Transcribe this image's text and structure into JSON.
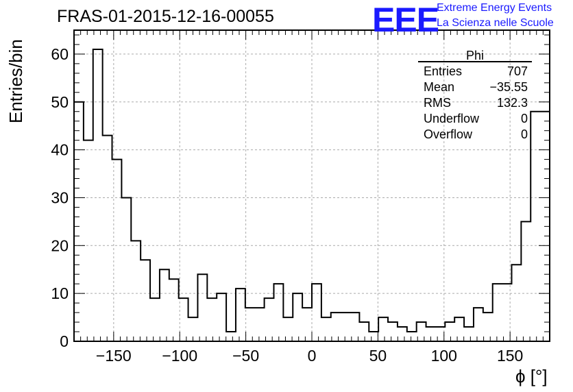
{
  "header": {
    "title": "FRAS-01-2015-12-16-00055"
  },
  "logo": {
    "text": "EEE",
    "line1": "Extreme Energy Events",
    "line2": "La Scienza nelle Scuole"
  },
  "stats": {
    "title": "Phi",
    "rows": [
      {
        "label": "Entries",
        "value": "707"
      },
      {
        "label": "Mean",
        "value": "−35.55"
      },
      {
        "label": "RMS",
        "value": "132.3"
      },
      {
        "label": "Underflow",
        "value": "0"
      },
      {
        "label": "Overflow",
        "value": "0"
      }
    ]
  },
  "chart_data": {
    "type": "histogram",
    "title": "FRAS-01-2015-12-16-00055",
    "xlabel": "ϕ [°]",
    "ylabel": "Entries/bin",
    "xlim": [
      -180,
      180
    ],
    "ylim": [
      0,
      65
    ],
    "bin_edges_start": -180,
    "bin_width": 7.2,
    "values": [
      50,
      42,
      61,
      43,
      38,
      30,
      21,
      17,
      9,
      15,
      13,
      9,
      5,
      14,
      9,
      10,
      2,
      11,
      7,
      7,
      9,
      12,
      5,
      10,
      7,
      12,
      5,
      6,
      6,
      6,
      4,
      2,
      5,
      4,
      3,
      2,
      4,
      3,
      3,
      4,
      5,
      3,
      7,
      6,
      12,
      12,
      16,
      25,
      48,
      48
    ],
    "xticks": [
      -150,
      -100,
      -50,
      0,
      50,
      100,
      150
    ],
    "xtick_labels": [
      "−150",
      "−100",
      "−50",
      "0",
      "50",
      "100",
      "150"
    ],
    "yticks": [
      0,
      10,
      20,
      30,
      40,
      50,
      60
    ],
    "ytick_labels": [
      "0",
      "10",
      "20",
      "30",
      "40",
      "50",
      "60"
    ],
    "grid": true
  }
}
